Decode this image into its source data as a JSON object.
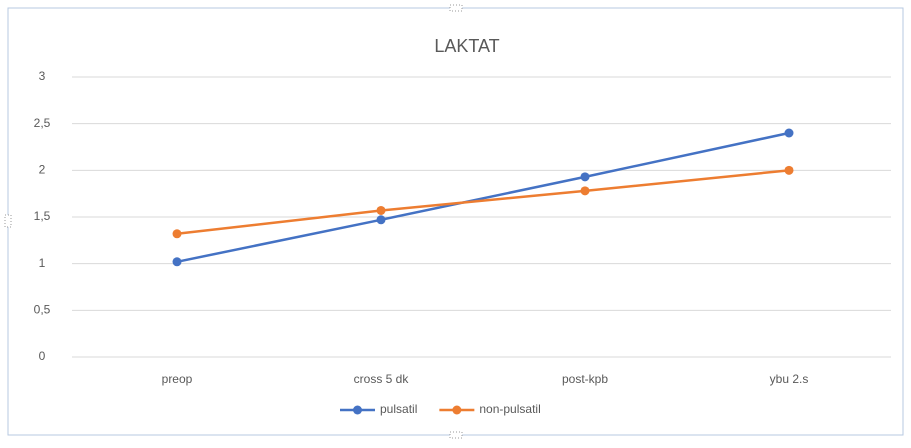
{
  "chart_data": {
    "type": "line",
    "title": "LAKTAT",
    "categories": [
      "preop",
      "cross 5 dk",
      "post-kpb",
      "ybu 2.s"
    ],
    "series": [
      {
        "name": "pulsatil",
        "color": "#4472c4",
        "values": [
          1.02,
          1.47,
          1.93,
          2.4
        ]
      },
      {
        "name": "non-pulsatil",
        "color": "#ed7d31",
        "values": [
          1.32,
          1.57,
          1.78,
          2.0
        ]
      }
    ],
    "ylim": [
      0,
      3
    ],
    "yticks": [
      0,
      {
        "value": 0.5,
        "label": "0,5"
      },
      1,
      {
        "value": 1.5,
        "label": "1,5"
      },
      2,
      {
        "value": 2.5,
        "label": "2,5"
      },
      3
    ],
    "grid": true,
    "legend": "bottom"
  }
}
